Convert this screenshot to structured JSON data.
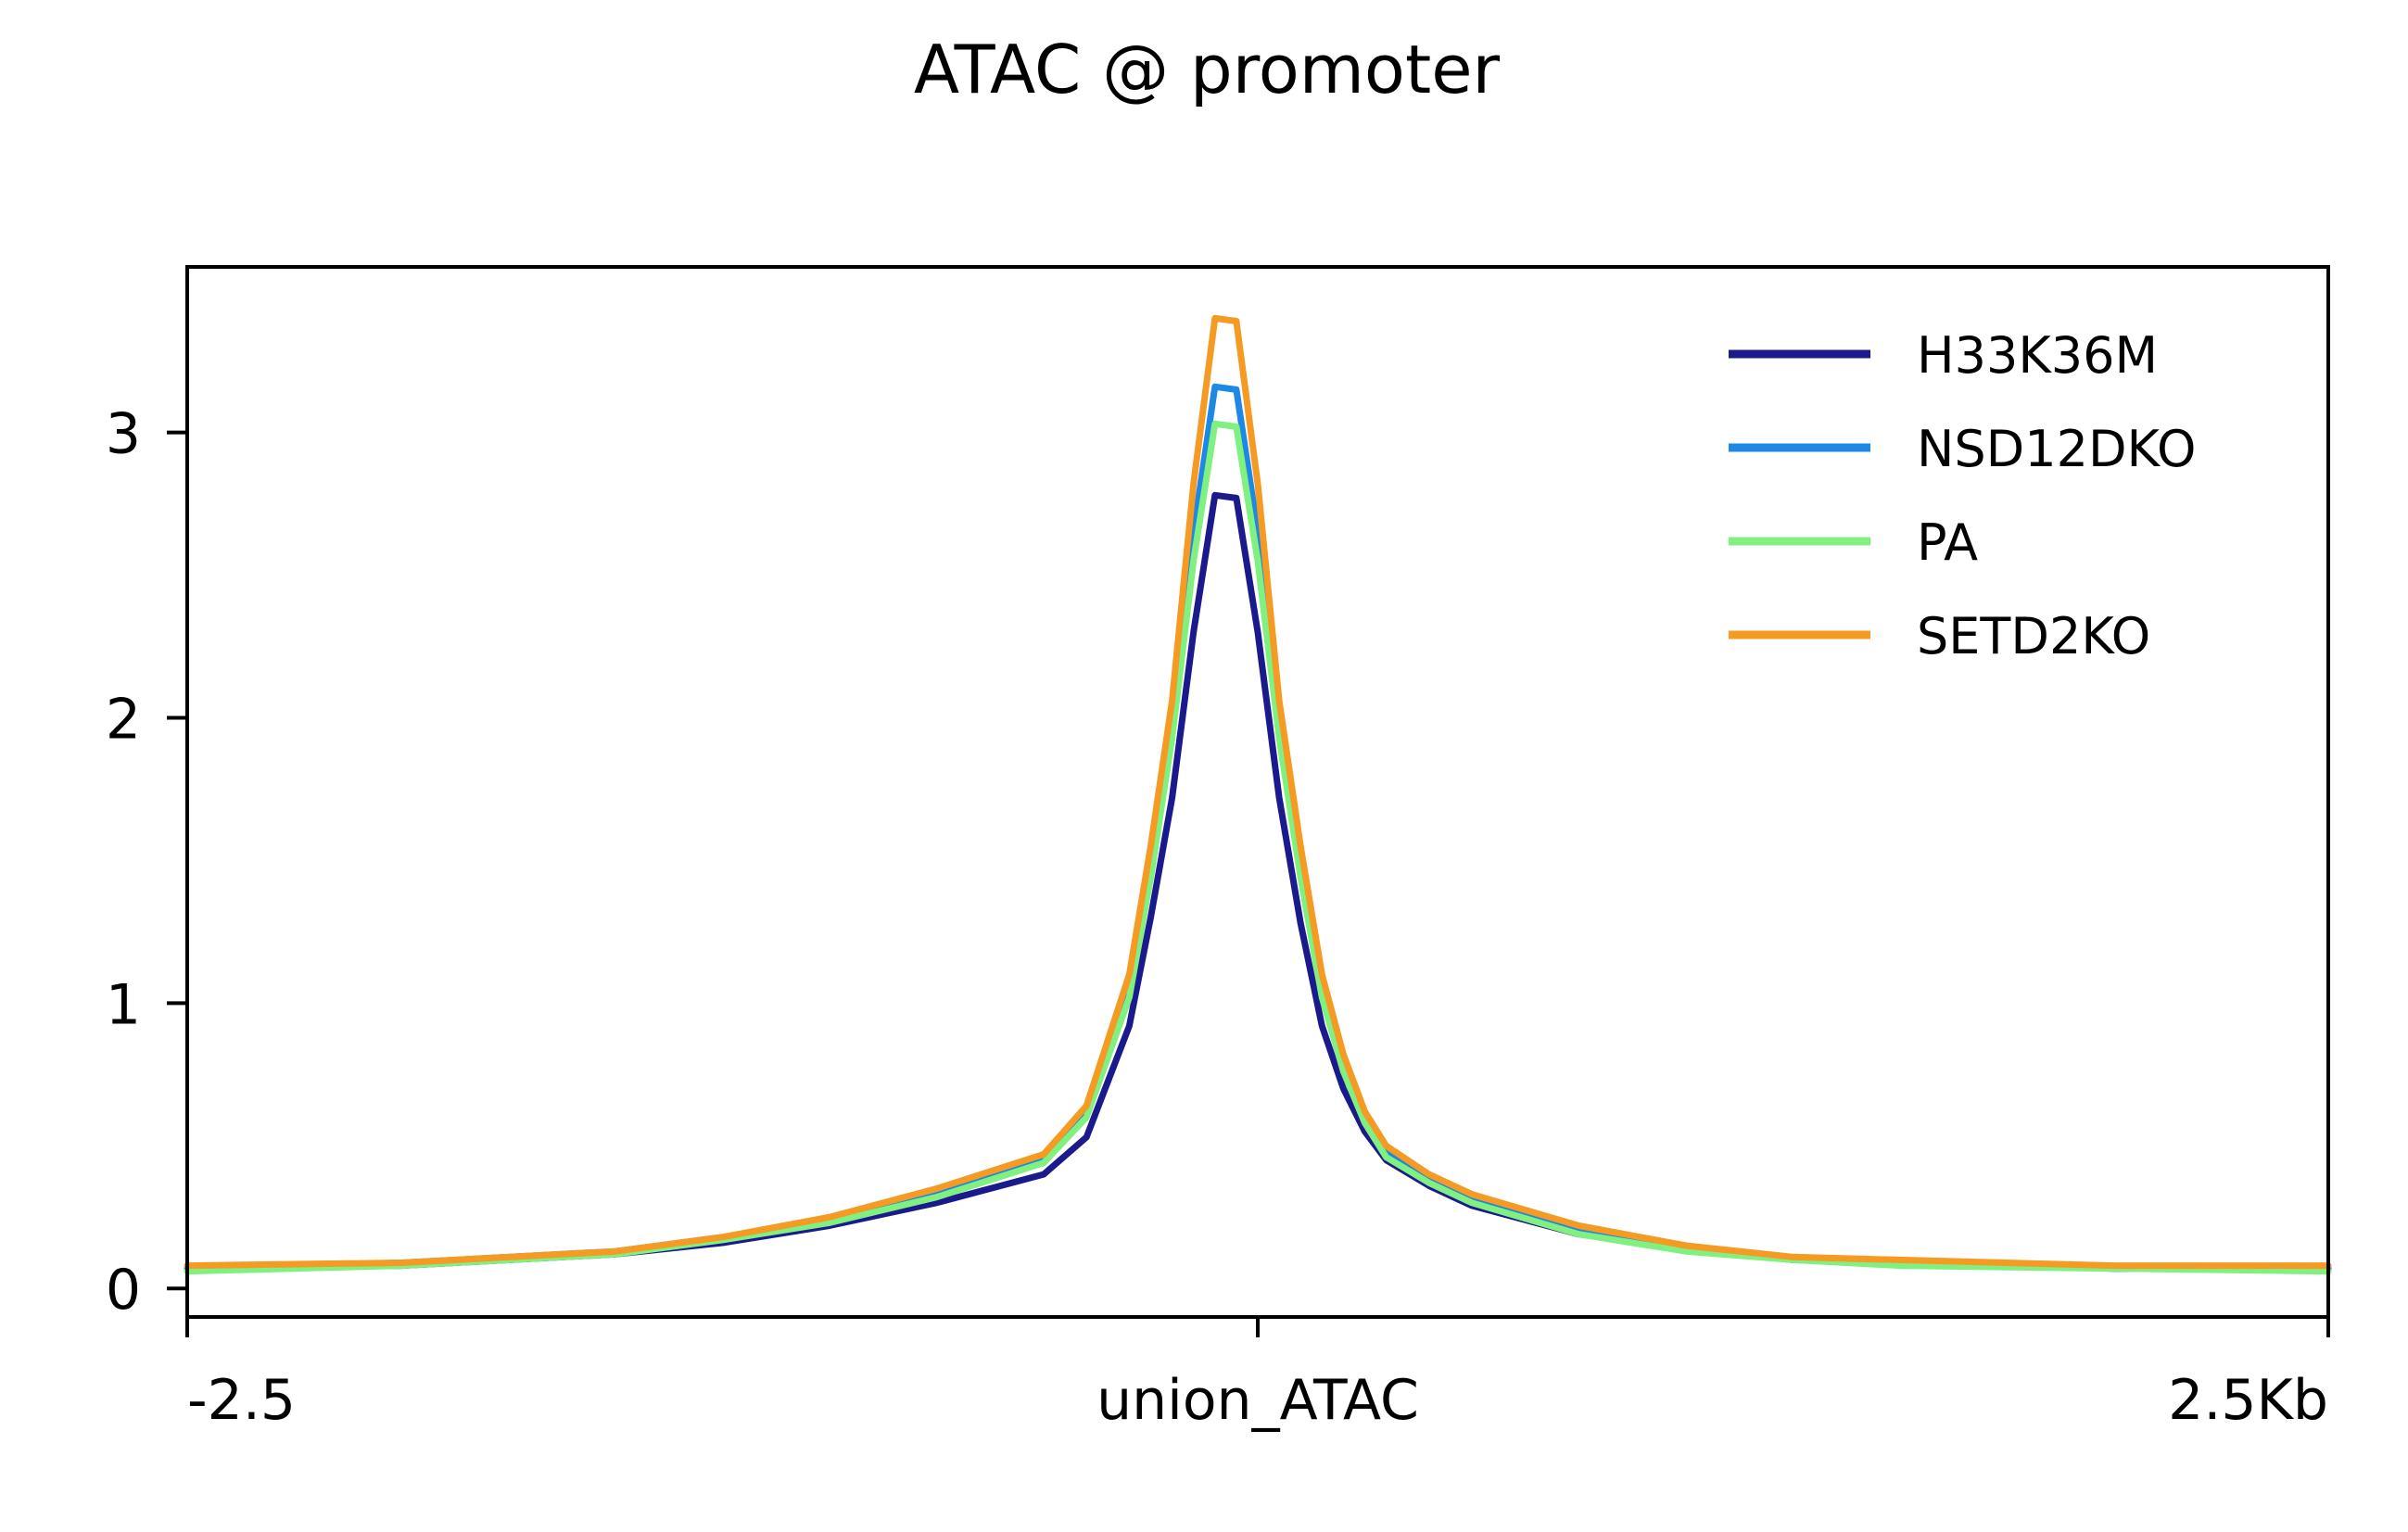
{
  "chart_data": {
    "type": "line",
    "title": "ATAC @ promoter",
    "xlabel": "",
    "ylabel": "",
    "xlim": [
      -2.5,
      2.5
    ],
    "ylim": [
      -0.1,
      3.58
    ],
    "x_ticks": [
      {
        "value": -2.5,
        "label": "-2.5"
      },
      {
        "value": 0,
        "label": "union_ATAC"
      },
      {
        "value": 2.5,
        "label": "2.5Kb"
      }
    ],
    "y_ticks": [
      {
        "value": 0,
        "label": "0"
      },
      {
        "value": 1,
        "label": "1"
      },
      {
        "value": 2,
        "label": "2"
      },
      {
        "value": 3,
        "label": "3"
      }
    ],
    "grid": false,
    "legend_position": "top-right",
    "x": [
      -2.5,
      -2.0,
      -1.5,
      -1.25,
      -1.0,
      -0.75,
      -0.5,
      -0.4,
      -0.3,
      -0.25,
      -0.2,
      -0.15,
      -0.1,
      -0.05,
      0,
      0.05,
      0.1,
      0.15,
      0.2,
      0.25,
      0.3,
      0.4,
      0.5,
      0.75,
      1.0,
      1.25,
      1.5,
      2.0,
      2.5
    ],
    "series": [
      {
        "name": "H33K36M",
        "color": "#1a1a8c",
        "values": [
          0.07,
          0.08,
          0.12,
          0.16,
          0.22,
          0.3,
          0.4,
          0.53,
          0.92,
          1.3,
          1.72,
          2.3,
          2.78,
          2.77,
          2.3,
          1.72,
          1.28,
          0.92,
          0.7,
          0.55,
          0.45,
          0.36,
          0.29,
          0.19,
          0.14,
          0.1,
          0.09,
          0.07,
          0.07
        ]
      },
      {
        "name": "NSD12DKO",
        "color": "#1e88e5",
        "values": [
          0.07,
          0.09,
          0.13,
          0.18,
          0.24,
          0.34,
          0.46,
          0.62,
          1.07,
          1.5,
          2.0,
          2.65,
          3.16,
          3.15,
          2.65,
          2.0,
          1.5,
          1.07,
          0.78,
          0.6,
          0.48,
          0.38,
          0.31,
          0.2,
          0.14,
          0.1,
          0.09,
          0.07,
          0.07
        ]
      },
      {
        "name": "PA",
        "color": "#80f080",
        "values": [
          0.06,
          0.08,
          0.12,
          0.17,
          0.23,
          0.32,
          0.44,
          0.6,
          1.02,
          1.44,
          1.93,
          2.55,
          3.03,
          3.02,
          2.55,
          1.93,
          1.44,
          1.02,
          0.76,
          0.58,
          0.46,
          0.37,
          0.3,
          0.19,
          0.13,
          0.1,
          0.08,
          0.07,
          0.06
        ]
      },
      {
        "name": "SETD2KO",
        "color": "#f59a23",
        "values": [
          0.08,
          0.09,
          0.13,
          0.18,
          0.25,
          0.35,
          0.47,
          0.64,
          1.1,
          1.55,
          2.06,
          2.82,
          3.4,
          3.39,
          2.82,
          2.06,
          1.55,
          1.1,
          0.82,
          0.62,
          0.5,
          0.4,
          0.33,
          0.22,
          0.15,
          0.11,
          0.1,
          0.08,
          0.08
        ]
      }
    ]
  }
}
